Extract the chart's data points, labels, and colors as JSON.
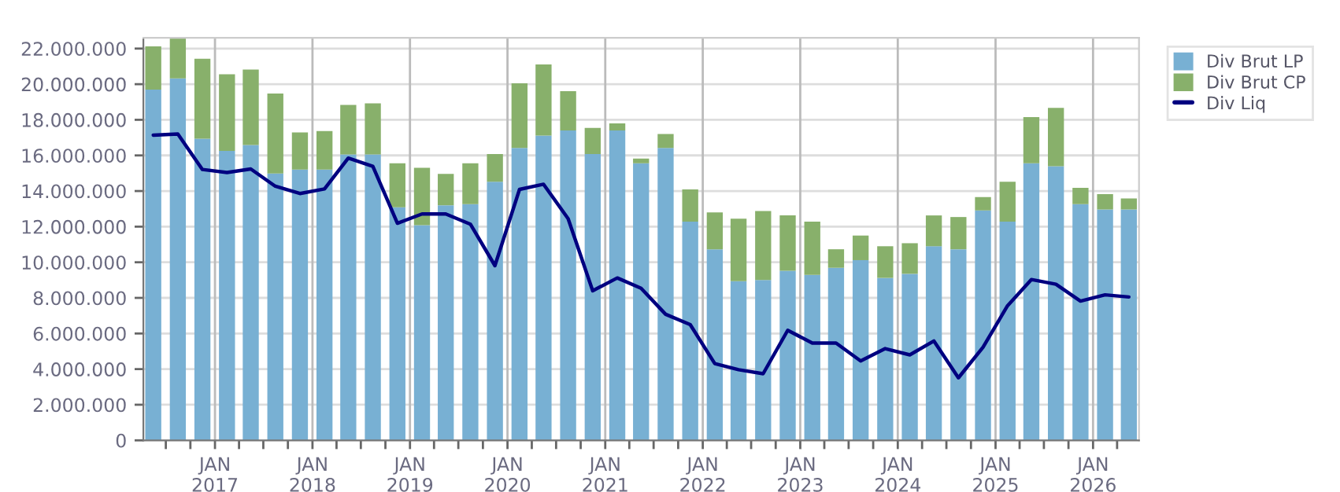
{
  "chart_data": {
    "type": "bar",
    "stacked": true,
    "x": [
      "2016-05-15",
      "2016-08-15",
      "2016-11-15",
      "2017-02-15",
      "2017-05-15",
      "2017-08-15",
      "2017-11-15",
      "2018-02-15",
      "2018-05-15",
      "2018-08-15",
      "2018-11-15",
      "2019-02-15",
      "2019-05-15",
      "2019-08-15",
      "2019-11-15",
      "2020-02-15",
      "2020-05-15",
      "2020-08-15",
      "2020-11-15",
      "2021-02-15",
      "2021-05-15",
      "2021-08-15",
      "2021-11-15",
      "2022-02-15",
      "2022-05-15",
      "2022-08-15",
      "2022-11-15",
      "2023-02-15",
      "2023-05-15",
      "2023-08-15",
      "2023-11-15",
      "2024-02-15",
      "2024-05-15",
      "2024-08-15",
      "2024-11-15",
      "2025-02-15",
      "2025-05-15",
      "2025-08-15",
      "2025-11-15",
      "2026-02-15",
      "2026-05-15"
    ],
    "series": [
      {
        "name": "Div Brut LP",
        "color": "#78b0d3",
        "values": [
          19700000,
          20330000,
          16940000,
          16250000,
          16590000,
          14980000,
          15210000,
          15210000,
          16050000,
          16050000,
          13090000,
          12080000,
          13200000,
          13260000,
          14520000,
          16420000,
          17110000,
          17400000,
          16080000,
          17400000,
          15560000,
          16420000,
          12280000,
          10730000,
          8940000,
          9000000,
          9520000,
          9290000,
          9690000,
          10120000,
          9120000,
          9350000,
          10900000,
          10730000,
          12910000,
          12280000,
          15560000,
          15390000,
          13260000,
          12970000,
          12970000
        ]
      },
      {
        "name": "Div Brut CP",
        "color": "#88b06b",
        "values": [
          2420000,
          2250000,
          4490000,
          4310000,
          4230000,
          4490000,
          2080000,
          2160000,
          2790000,
          2870000,
          2470000,
          3220000,
          1760000,
          2300000,
          1560000,
          3630000,
          4000000,
          2210000,
          1460000,
          400000,
          260000,
          780000,
          1810000,
          2070000,
          3510000,
          3880000,
          3110000,
          2990000,
          1040000,
          1380000,
          1780000,
          1720000,
          1730000,
          1810000,
          750000,
          2240000,
          2590000,
          3280000,
          920000,
          860000,
          610000
        ]
      },
      {
        "name": "Div Liq",
        "type": "line",
        "color": "#000080",
        "values": [
          17140000,
          17200000,
          15210000,
          15040000,
          15240000,
          14270000,
          13860000,
          14120000,
          15850000,
          15390000,
          12190000,
          12710000,
          12710000,
          12140000,
          9810000,
          14090000,
          14380000,
          12450000,
          8400000,
          9120000,
          8540000,
          7080000,
          6500000,
          4310000,
          3970000,
          3740000,
          6180000,
          5460000,
          5460000,
          4460000,
          5150000,
          4800000,
          5580000,
          3510000,
          5230000,
          7560000,
          9030000,
          8770000,
          7820000,
          8170000,
          8050000
        ]
      }
    ],
    "xlim": [
      "2016-04-08",
      "2026-06-22"
    ],
    "xticks": [
      {
        "value": "2016-07-01",
        "label": null
      },
      {
        "value": "2016-10-01",
        "label": null
      },
      {
        "value": "2017-01-01",
        "label": "JAN\n2017"
      },
      {
        "value": "2017-04-01",
        "label": null
      },
      {
        "value": "2017-07-01",
        "label": null
      },
      {
        "value": "2017-10-01",
        "label": null
      },
      {
        "value": "2018-01-01",
        "label": "JAN\n2018"
      },
      {
        "value": "2018-04-01",
        "label": null
      },
      {
        "value": "2018-07-01",
        "label": null
      },
      {
        "value": "2018-10-01",
        "label": null
      },
      {
        "value": "2019-01-01",
        "label": "JAN\n2019"
      },
      {
        "value": "2019-04-01",
        "label": null
      },
      {
        "value": "2019-07-01",
        "label": null
      },
      {
        "value": "2019-10-01",
        "label": null
      },
      {
        "value": "2020-01-01",
        "label": "JAN\n2020"
      },
      {
        "value": "2020-04-01",
        "label": null
      },
      {
        "value": "2020-07-01",
        "label": null
      },
      {
        "value": "2020-10-01",
        "label": null
      },
      {
        "value": "2021-01-01",
        "label": "JAN\n2021"
      },
      {
        "value": "2021-04-01",
        "label": null
      },
      {
        "value": "2021-07-01",
        "label": null
      },
      {
        "value": "2021-10-01",
        "label": null
      },
      {
        "value": "2022-01-01",
        "label": "JAN\n2022"
      },
      {
        "value": "2022-04-01",
        "label": null
      },
      {
        "value": "2022-07-01",
        "label": null
      },
      {
        "value": "2022-10-01",
        "label": null
      },
      {
        "value": "2023-01-01",
        "label": "JAN\n2023"
      },
      {
        "value": "2023-04-01",
        "label": null
      },
      {
        "value": "2023-07-01",
        "label": null
      },
      {
        "value": "2023-10-01",
        "label": null
      },
      {
        "value": "2024-01-01",
        "label": "JAN\n2024"
      },
      {
        "value": "2024-04-01",
        "label": null
      },
      {
        "value": "2024-07-01",
        "label": null
      },
      {
        "value": "2024-10-01",
        "label": null
      },
      {
        "value": "2025-01-01",
        "label": "JAN\n2025"
      },
      {
        "value": "2025-04-01",
        "label": null
      },
      {
        "value": "2025-07-01",
        "label": null
      },
      {
        "value": "2025-10-01",
        "label": null
      },
      {
        "value": "2026-01-01",
        "label": "JAN\n2026"
      },
      {
        "value": "2026-04-01",
        "label": null
      }
    ],
    "ylim": [
      0,
      22600000
    ],
    "yticks": [
      {
        "value": 0,
        "label": "0"
      },
      {
        "value": 2000000,
        "label": "2.000.000"
      },
      {
        "value": 4000000,
        "label": "4.000.000"
      },
      {
        "value": 6000000,
        "label": "6.000.000"
      },
      {
        "value": 8000000,
        "label": "8.000.000"
      },
      {
        "value": 10000000,
        "label": "10.000.000"
      },
      {
        "value": 12000000,
        "label": "12.000.000"
      },
      {
        "value": 14000000,
        "label": "14.000.000"
      },
      {
        "value": 16000000,
        "label": "16.000.000"
      },
      {
        "value": 18000000,
        "label": "18.000.000"
      },
      {
        "value": 20000000,
        "label": "20.000.000"
      },
      {
        "value": 22000000,
        "label": "22.000.000"
      }
    ],
    "grid": true,
    "legend": "top right",
    "marker": "none",
    "line_style": "solid"
  }
}
